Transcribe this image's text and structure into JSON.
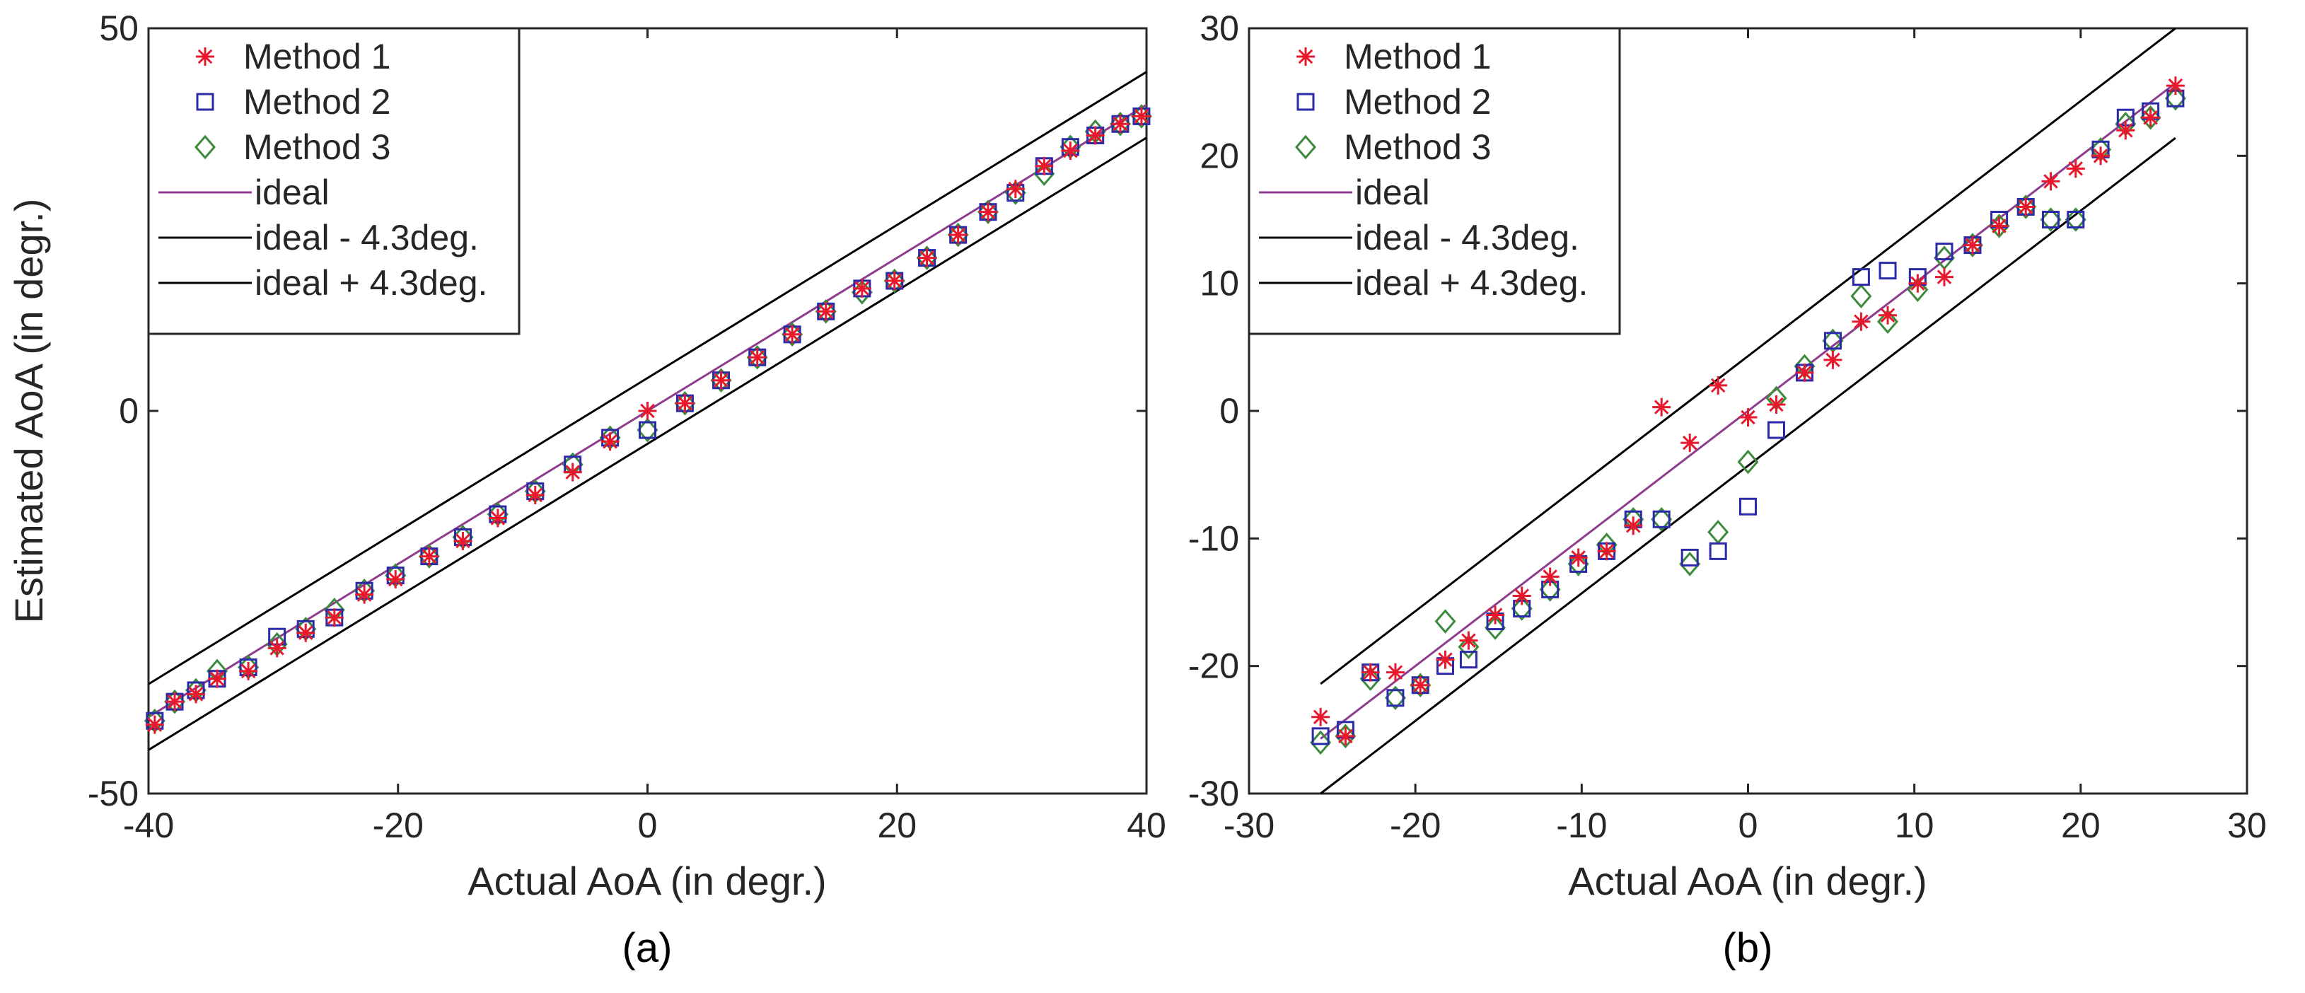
{
  "chart_data": [
    {
      "type": "scatter",
      "panel": "(a)",
      "xlabel": "Actual AoA (in degr.)",
      "ylabel": "Estimated AoA (in degr.)",
      "xlim": [
        -40,
        40
      ],
      "ylim": [
        -50,
        50
      ],
      "xticks": [
        -40,
        -20,
        0,
        20,
        40
      ],
      "yticks": [
        -50,
        0,
        50
      ],
      "legend_position": "top-left",
      "legend": [
        {
          "name": "Method 1",
          "marker": "asterisk",
          "color": "#e8192c"
        },
        {
          "name": "Method 2",
          "marker": "square",
          "color": "#2b2ba8"
        },
        {
          "name": "Method 3",
          "marker": "diamond",
          "color": "#3c8a3c"
        },
        {
          "name": "ideal",
          "marker": "line",
          "color": "#8e3c8e"
        },
        {
          "name": "ideal - 4.3deg.",
          "marker": "line",
          "color": "#000000"
        },
        {
          "name": "ideal + 4.3deg.",
          "marker": "line",
          "color": "#000000"
        }
      ],
      "lines": [
        {
          "name": "ideal",
          "x": [
            -40,
            40
          ],
          "y": [
            -40,
            40
          ]
        },
        {
          "name": "ideal - 4.3deg.",
          "x": [
            -40,
            40
          ],
          "y": [
            -44.3,
            35.7
          ]
        },
        {
          "name": "ideal + 4.3deg.",
          "x": [
            -40,
            40
          ],
          "y": [
            -35.7,
            44.3
          ]
        }
      ],
      "series": [
        {
          "name": "Method 1",
          "x": [
            -39.5,
            -37.9,
            -36.2,
            -34.5,
            -32.0,
            -29.7,
            -27.4,
            -25.1,
            -22.7,
            -20.2,
            -17.5,
            -14.8,
            -12.0,
            -9.0,
            -6.0,
            -3.0,
            0.0,
            3.0,
            5.9,
            8.8,
            11.6,
            14.3,
            17.2,
            19.8,
            22.4,
            24.9,
            27.3,
            29.5,
            31.8,
            33.9,
            35.9,
            37.9,
            39.6
          ],
          "y": [
            -41.0,
            -38.0,
            -37.0,
            -35.0,
            -34.0,
            -31.0,
            -29.0,
            -27.0,
            -24.0,
            -22.0,
            -19.0,
            -17.0,
            -14.0,
            -11.0,
            -8.0,
            -4.0,
            0.0,
            1.0,
            4.0,
            7.0,
            10.0,
            13.0,
            16.0,
            17.0,
            20.0,
            23.0,
            26.0,
            29.0,
            32.0,
            34.0,
            36.0,
            37.5,
            38.5
          ]
        },
        {
          "name": "Method 2",
          "x": [
            -39.5,
            -37.9,
            -36.2,
            -34.5,
            -32.0,
            -29.7,
            -27.4,
            -25.1,
            -22.7,
            -20.2,
            -17.5,
            -14.8,
            -12.0,
            -9.0,
            -6.0,
            -3.0,
            0.0,
            3.0,
            5.9,
            8.8,
            11.6,
            14.3,
            17.2,
            19.8,
            22.4,
            24.9,
            27.3,
            29.5,
            31.8,
            33.9,
            35.9,
            37.9,
            39.6
          ],
          "y": [
            -40.5,
            -38.0,
            -36.5,
            -35.0,
            -33.5,
            -29.5,
            -28.5,
            -27.0,
            -23.5,
            -21.5,
            -19.0,
            -16.5,
            -13.5,
            -10.5,
            -7.0,
            -3.5,
            -2.5,
            1.0,
            4.0,
            7.0,
            10.0,
            13.0,
            16.0,
            17.0,
            20.0,
            23.0,
            26.0,
            28.5,
            32.0,
            34.5,
            36.0,
            37.5,
            38.5
          ]
        },
        {
          "name": "Method 3",
          "x": [
            -39.5,
            -37.9,
            -36.2,
            -34.5,
            -32.0,
            -29.7,
            -27.4,
            -25.1,
            -22.7,
            -20.2,
            -17.5,
            -14.8,
            -12.0,
            -9.0,
            -6.0,
            -3.0,
            0.0,
            3.0,
            5.9,
            8.8,
            11.6,
            14.3,
            17.2,
            19.8,
            22.4,
            24.9,
            27.3,
            29.5,
            31.8,
            33.9,
            35.9,
            37.9,
            39.6
          ],
          "y": [
            -40.5,
            -38.0,
            -36.5,
            -34.0,
            -33.5,
            -30.5,
            -28.5,
            -26.0,
            -23.5,
            -21.5,
            -19.0,
            -16.5,
            -13.5,
            -10.5,
            -7.0,
            -3.5,
            -2.5,
            1.0,
            4.0,
            7.0,
            10.0,
            13.0,
            15.5,
            17.0,
            20.0,
            23.0,
            26.0,
            28.5,
            31.0,
            34.5,
            36.5,
            37.5,
            38.5
          ]
        }
      ]
    },
    {
      "type": "scatter",
      "panel": "(b)",
      "xlabel": "Actual AoA (in degr.)",
      "ylabel": "",
      "xlim": [
        -30,
        30
      ],
      "ylim": [
        -30,
        30
      ],
      "xticks": [
        -30,
        -20,
        -10,
        0,
        10,
        20,
        30
      ],
      "yticks": [
        -30,
        -20,
        -10,
        0,
        10,
        20,
        30
      ],
      "legend_position": "top-left",
      "legend": [
        {
          "name": "Method 1",
          "marker": "asterisk",
          "color": "#e8192c"
        },
        {
          "name": "Method 2",
          "marker": "square",
          "color": "#2b2ba8"
        },
        {
          "name": "Method 3",
          "marker": "diamond",
          "color": "#3c8a3c"
        },
        {
          "name": "ideal",
          "marker": "line",
          "color": "#8e3c8e"
        },
        {
          "name": "ideal - 4.3deg.",
          "marker": "line",
          "color": "#000000"
        },
        {
          "name": "ideal + 4.3deg.",
          "marker": "line",
          "color": "#000000"
        }
      ],
      "lines": [
        {
          "name": "ideal",
          "x": [
            -25.7,
            25.7
          ],
          "y": [
            -25.7,
            25.7
          ]
        },
        {
          "name": "ideal - 4.3deg.",
          "x": [
            -25.7,
            25.7
          ],
          "y": [
            -30,
            21.4
          ]
        },
        {
          "name": "ideal + 4.3deg.",
          "x": [
            -25.7,
            25.7
          ],
          "y": [
            -21.4,
            30
          ]
        }
      ],
      "series": [
        {
          "name": "Method 1",
          "x": [
            -25.7,
            -24.2,
            -22.7,
            -21.2,
            -19.7,
            -18.2,
            -16.8,
            -15.2,
            -13.6,
            -11.9,
            -10.2,
            -8.5,
            -6.9,
            -5.2,
            -3.5,
            -1.8,
            0.0,
            1.7,
            3.4,
            5.1,
            6.8,
            8.4,
            10.2,
            11.8,
            13.5,
            15.1,
            16.7,
            18.2,
            19.7,
            21.2,
            22.7,
            24.2,
            25.7
          ],
          "y": [
            -24.0,
            -25.5,
            -20.5,
            -20.5,
            -21.5,
            -19.5,
            -18.0,
            -16.0,
            -14.5,
            -13.0,
            -11.5,
            -11.0,
            -9.0,
            0.3,
            -2.5,
            2.0,
            -0.5,
            0.5,
            3.0,
            4.0,
            7.0,
            7.5,
            10.0,
            10.5,
            13.0,
            14.5,
            16.0,
            18.0,
            19.0,
            20.0,
            22.0,
            23.0,
            25.5
          ]
        },
        {
          "name": "Method 2",
          "x": [
            -25.7,
            -24.2,
            -22.7,
            -21.2,
            -19.7,
            -18.2,
            -16.8,
            -15.2,
            -13.6,
            -11.9,
            -10.2,
            -8.5,
            -6.9,
            -5.2,
            -3.5,
            -1.8,
            0.0,
            1.7,
            3.4,
            5.1,
            6.8,
            8.4,
            10.2,
            11.8,
            13.5,
            15.1,
            16.7,
            18.2,
            19.7,
            21.2,
            22.7,
            24.2,
            25.7
          ],
          "y": [
            -25.5,
            -25.0,
            -20.5,
            -22.5,
            -21.5,
            -20.0,
            -19.5,
            -16.5,
            -15.5,
            -14.0,
            -12.0,
            -11.0,
            -8.5,
            -8.5,
            -11.5,
            -11.0,
            -7.5,
            -1.5,
            3.0,
            5.5,
            10.5,
            11.0,
            10.5,
            12.5,
            13.0,
            15.0,
            16.0,
            15.0,
            15.0,
            20.5,
            23.0,
            23.5,
            24.5
          ]
        },
        {
          "name": "Method 3",
          "x": [
            -25.7,
            -24.2,
            -22.7,
            -21.2,
            -19.7,
            -18.2,
            -16.8,
            -15.2,
            -13.6,
            -11.9,
            -10.2,
            -8.5,
            -6.9,
            -5.2,
            -3.5,
            -1.8,
            0.0,
            1.7,
            3.4,
            5.1,
            6.8,
            8.4,
            10.2,
            11.8,
            13.5,
            15.1,
            16.7,
            18.2,
            19.7,
            21.2,
            22.7,
            24.2,
            25.7
          ],
          "y": [
            -26.0,
            -25.5,
            -21.0,
            -22.5,
            -21.5,
            -16.5,
            -18.5,
            -17.0,
            -15.5,
            -14.0,
            -12.0,
            -10.5,
            -8.5,
            -8.5,
            -12.0,
            -9.5,
            -4.0,
            1.0,
            3.5,
            5.5,
            9.0,
            7.0,
            9.5,
            12.0,
            13.0,
            14.5,
            16.0,
            15.0,
            15.0,
            20.5,
            22.5,
            23.0,
            24.5
          ]
        }
      ]
    }
  ],
  "captions": {
    "a": "(a)",
    "b": "(b)"
  }
}
